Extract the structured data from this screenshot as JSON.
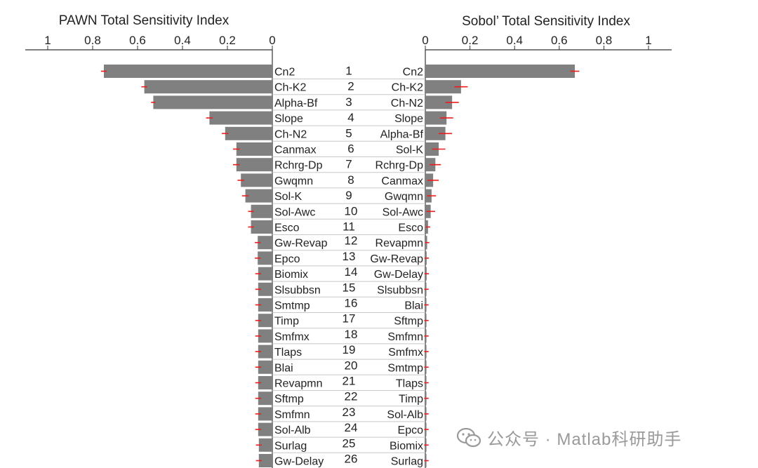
{
  "chart_data": [
    {
      "type": "bar",
      "orientation": "horizontal",
      "direction": "leftward",
      "title": "PAWN Total Sensitivity Index",
      "xlim": [
        0,
        1
      ],
      "x_ticks": [
        "1",
        "0.8",
        "0.6",
        "0.4",
        "0.2",
        "0"
      ],
      "categories": [
        "Cn2",
        "Ch-K2",
        "Alpha-Bf",
        "Slope",
        "Ch-N2",
        "Canmax",
        "Rchrg-Dp",
        "Gwqmn",
        "Sol-K",
        "Sol-Awc",
        "Esco",
        "Gw-Revap",
        "Epco",
        "Biomix",
        "Slsubbsn",
        "Smtmp",
        "Timp",
        "Smfmx",
        "Tlaps",
        "Blai",
        "Revapmn",
        "Sftmp",
        "Smfmn",
        "Sol-Alb",
        "Surlag",
        "Gw-Delay"
      ],
      "values": [
        0.75,
        0.57,
        0.53,
        0.28,
        0.21,
        0.16,
        0.16,
        0.14,
        0.12,
        0.095,
        0.095,
        0.065,
        0.065,
        0.063,
        0.063,
        0.063,
        0.063,
        0.063,
        0.063,
        0.063,
        0.063,
        0.063,
        0.063,
        0.063,
        0.06,
        0.06
      ],
      "error": [
        0.013,
        0.013,
        0.01,
        0.015,
        0.015,
        0.015,
        0.015,
        0.015,
        0.015,
        0.013,
        0.013,
        0.013,
        0.013,
        0.013,
        0.013,
        0.013,
        0.013,
        0.013,
        0.013,
        0.013,
        0.013,
        0.013,
        0.013,
        0.013,
        0.013,
        0.013
      ],
      "bar_color": "#808080",
      "error_color": "#ee1c1c"
    },
    {
      "type": "bar",
      "orientation": "horizontal",
      "direction": "rightward",
      "title": "Sobol’ Total Sensitivity Index",
      "xlim": [
        0,
        1
      ],
      "x_ticks": [
        "0",
        "0.2",
        "0.4",
        "0.6",
        "0.8",
        "1"
      ],
      "categories": [
        "Cn2",
        "Ch-K2",
        "Ch-N2",
        "Slope",
        "Alpha-Bf",
        "Sol-K",
        "Rchrg-Dp",
        "Canmax",
        "Gwqmn",
        "Sol-Awc",
        "Esco",
        "Revapmn",
        "Gw-Revap",
        "Gw-Delay",
        "Slsubbsn",
        "Blai",
        "Sftmp",
        "Smfmn",
        "Smfmx",
        "Smtmp",
        "Tlaps",
        "Timp",
        "Sol-Alb",
        "Epco",
        "Biomix",
        "Surlag"
      ],
      "values": [
        0.67,
        0.16,
        0.12,
        0.095,
        0.09,
        0.06,
        0.045,
        0.035,
        0.028,
        0.024,
        0.012,
        0.008,
        0.006,
        0.006,
        0.005,
        0.005,
        0.005,
        0.005,
        0.005,
        0.005,
        0.005,
        0.005,
        0.005,
        0.005,
        0.005,
        0.005
      ],
      "error": [
        0.02,
        0.03,
        0.03,
        0.03,
        0.03,
        0.03,
        0.025,
        0.025,
        0.02,
        0.02,
        0.01,
        0.01,
        0.01,
        0.01,
        0.01,
        0.01,
        0.01,
        0.01,
        0.01,
        0.01,
        0.01,
        0.01,
        0.01,
        0.01,
        0.01,
        0.01
      ],
      "bar_color": "#808080",
      "error_color": "#ee1c1c"
    }
  ],
  "ranks": [
    "1",
    "2",
    "3",
    "4",
    "5",
    "6",
    "7",
    "8",
    "9",
    "10",
    "11",
    "12",
    "13",
    "14",
    "15",
    "16",
    "17",
    "18",
    "19",
    "20",
    "21",
    "22",
    "23",
    "24",
    "25",
    "26"
  ],
  "watermark": {
    "text": "公众号 · Matlab科研助手",
    "icon": "wechat-icon"
  }
}
